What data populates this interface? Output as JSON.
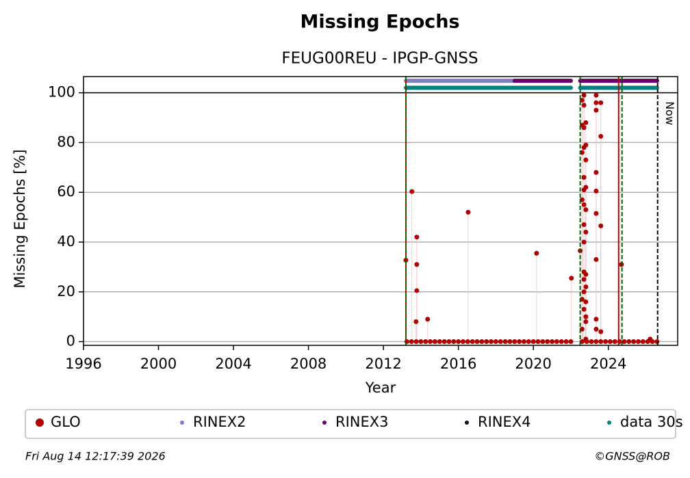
{
  "chart_data": {
    "type": "scatter",
    "title": "Missing Epochs",
    "subtitle": "FEUG00REU - IPGP-GNSS",
    "x_label": "Year",
    "y_label": "Missing Epochs [%]",
    "xlim": [
      1996,
      2027.7
    ],
    "ylim": [
      -1.5,
      106.5
    ],
    "xticks": [
      1996,
      2000,
      2004,
      2008,
      2012,
      2016,
      2020,
      2024
    ],
    "yticks": [
      0,
      20,
      40,
      60,
      80,
      100
    ],
    "grid": true,
    "hline": 100,
    "series": [
      {
        "name": "GLO",
        "color": "#b00000",
        "x": [
          2013.2,
          2013.52,
          2013.78,
          2013.78,
          2013.78,
          2013.74,
          2014.36,
          2016.52,
          2020.17,
          2022.03,
          2022.5,
          2022.6,
          2022.6,
          2022.6,
          2022.6,
          2022.6,
          2022.6,
          2022.7,
          2022.7,
          2022.7,
          2022.7,
          2022.7,
          2022.7,
          2022.7,
          2022.7,
          2022.7,
          2022.7,
          2022.7,
          2022.7,
          2022.7,
          2022.8,
          2022.8,
          2022.8,
          2022.8,
          2022.8,
          2022.8,
          2022.8,
          2022.8,
          2022.8,
          2022.8,
          2022.8,
          2022.8,
          2023.35,
          2023.35,
          2023.35,
          2023.35,
          2023.35,
          2023.35,
          2023.35,
          2023.35,
          2023.35,
          2023.6,
          2023.6,
          2023.6,
          2023.6,
          2024.7,
          2026.23,
          2013.25,
          2013.5,
          2013.75,
          2014.0,
          2014.25,
          2014.5,
          2014.75,
          2015.0,
          2015.25,
          2015.5,
          2015.75,
          2016.0,
          2016.25,
          2016.5,
          2016.75,
          2017.0,
          2017.25,
          2017.5,
          2017.75,
          2018.0,
          2018.25,
          2018.5,
          2018.75,
          2019.0,
          2019.25,
          2019.5,
          2019.75,
          2020.0,
          2020.25,
          2020.5,
          2020.75,
          2021.0,
          2021.25,
          2021.5,
          2021.75,
          2022.0,
          2022.6,
          2022.85,
          2023.1,
          2023.35,
          2023.6,
          2023.85,
          2024.1,
          2024.35,
          2024.6,
          2024.85,
          2025.1,
          2025.35,
          2025.6,
          2025.85,
          2026.1,
          2026.35,
          2026.6
        ],
        "values": [
          32.7,
          60.3,
          42,
          31,
          20.5,
          8,
          9,
          52,
          35.5,
          25.5,
          36.5,
          97,
          87,
          76,
          57,
          17,
          5,
          99,
          95,
          86,
          78,
          66,
          61,
          55,
          47,
          40,
          28,
          25,
          20,
          13,
          88,
          79,
          73,
          62,
          53,
          44,
          27,
          22,
          16,
          10,
          8,
          1,
          99,
          96,
          93,
          68,
          60.5,
          51.5,
          33,
          9,
          5,
          96,
          82.5,
          46.5,
          4,
          31,
          1,
          0,
          0,
          0,
          0,
          0,
          0,
          0,
          0,
          0,
          0,
          0,
          0,
          0,
          0,
          0,
          0,
          0,
          0,
          0,
          0,
          0,
          0,
          0,
          0,
          0,
          0,
          0,
          0,
          0,
          0,
          0,
          0,
          0,
          0,
          0,
          0,
          0,
          0,
          0,
          0,
          0,
          0,
          0,
          0,
          0,
          0,
          0,
          0,
          0,
          0,
          0,
          0,
          0
        ]
      },
      {
        "name": "RINEX2",
        "color": "#7f7fbf",
        "level": 104.8,
        "spans": [
          [
            2013.2,
            2019.0
          ]
        ]
      },
      {
        "name": "RINEX3",
        "color": "#660066",
        "level": 104.8,
        "spans": [
          [
            2019.0,
            2022.0
          ],
          [
            2022.5,
            2026.6
          ]
        ]
      },
      {
        "name": "RINEX4",
        "color": "#1a0026",
        "level": 104.8,
        "spans": []
      },
      {
        "name": "data 30s",
        "color": "#008080",
        "level": 102,
        "spans": [
          [
            2013.2,
            2022.0
          ],
          [
            2022.5,
            2026.6
          ]
        ]
      }
    ],
    "vlines": [
      {
        "x": 2013.2,
        "color": "#c00000",
        "dashed": false
      },
      {
        "x": 2013.2,
        "color": "#006400",
        "dashed": true
      },
      {
        "x": 2022.5,
        "color": "#006400",
        "dashed": true
      },
      {
        "x": 2024.55,
        "color": "#c00000",
        "dashed": false
      },
      {
        "x": 2024.73,
        "color": "#006400",
        "dashed": true
      }
    ],
    "now": {
      "x": 2026.63,
      "label": "Now"
    },
    "legend": "bottom",
    "timestamp": "Fri Aug 14 12:17:39 2026",
    "credit": "©GNSS@ROB"
  }
}
